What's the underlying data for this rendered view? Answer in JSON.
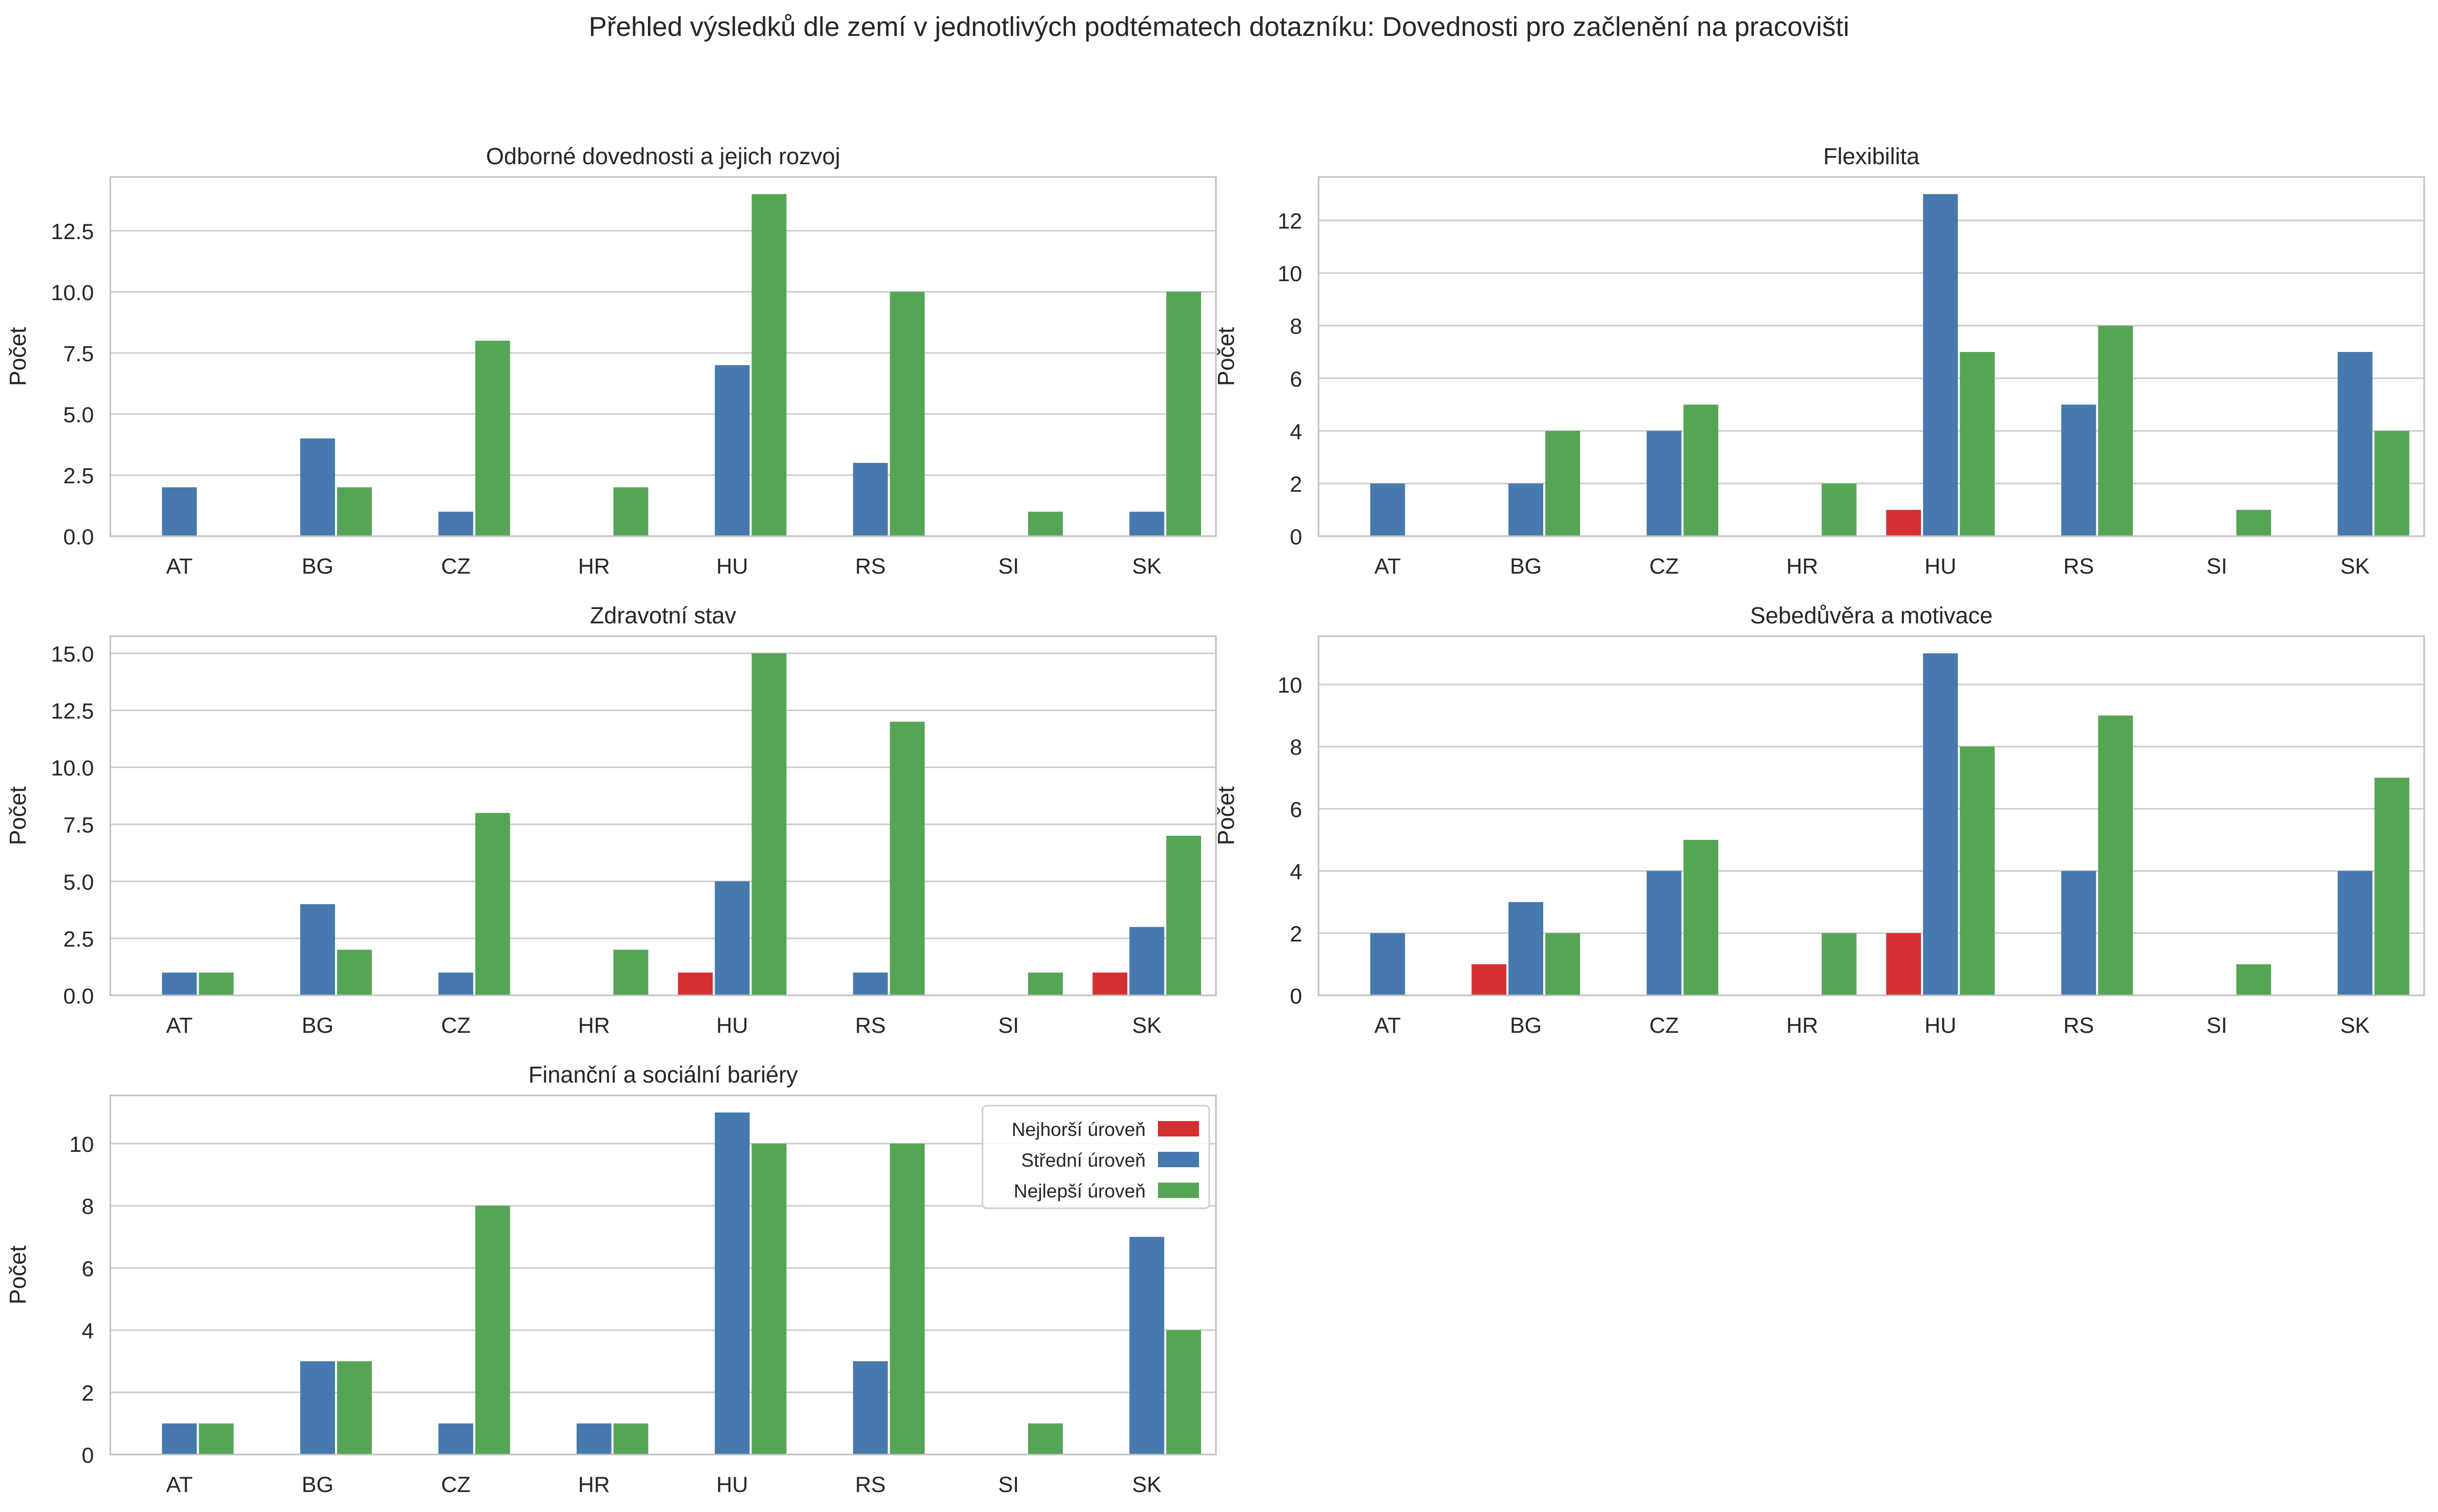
{
  "figure": {
    "title": "Přehled výsledků dle zemí v jednotlivých podtématech dotazníku: Dovednosti pro začlenění na pracovišti"
  },
  "legend": {
    "placement": "top-right",
    "entries": [
      "Nejhorší úroveň",
      "Střední úroveň",
      "Nejlepší úroveň"
    ]
  },
  "colors": {
    "Nejhorší úroveň": "#d62f32",
    "Střední úroveň": "#4679ad",
    "Nejlepší úroveň": "#56a556",
    "grid": "#cccccc",
    "frame": "#bfbfbf"
  },
  "chart_data": [
    {
      "type": "bar",
      "title": "Odborné dovednosti a jejich rozvoj",
      "xlabel": "",
      "ylabel": "Počet",
      "grid": true,
      "categories": [
        "AT",
        "BG",
        "CZ",
        "HR",
        "HU",
        "RS",
        "SI",
        "SK"
      ],
      "ylim": [
        0,
        14.7
      ],
      "yticks": [
        0,
        2.5,
        5,
        7.5,
        10,
        12.5
      ],
      "yticklabels": [
        "0.0",
        "2.5",
        "5.0",
        "7.5",
        "10.0",
        "12.5"
      ],
      "series": [
        {
          "name": "Nejhorší úroveň",
          "values": [
            0,
            0,
            0,
            0,
            0,
            0,
            0,
            0
          ]
        },
        {
          "name": "Střední úroveň",
          "values": [
            2,
            4,
            1,
            0,
            7,
            3,
            0,
            1
          ]
        },
        {
          "name": "Nejlepší úroveň",
          "values": [
            0,
            2,
            8,
            2,
            14,
            10,
            1,
            10
          ]
        }
      ]
    },
    {
      "type": "bar",
      "title": "Flexibilita",
      "xlabel": "",
      "ylabel": "Počet",
      "grid": true,
      "categories": [
        "AT",
        "BG",
        "CZ",
        "HR",
        "HU",
        "RS",
        "SI",
        "SK"
      ],
      "ylim": [
        0,
        13.65
      ],
      "yticks": [
        0,
        2,
        4,
        6,
        8,
        10,
        12
      ],
      "yticklabels": [
        "0",
        "2",
        "4",
        "6",
        "8",
        "10",
        "12"
      ],
      "series": [
        {
          "name": "Nejhorší úroveň",
          "values": [
            0,
            0,
            0,
            0,
            1,
            0,
            0,
            0
          ]
        },
        {
          "name": "Střední úroveň",
          "values": [
            2,
            2,
            4,
            0,
            13,
            5,
            0,
            7
          ]
        },
        {
          "name": "Nejlepší úroveň",
          "values": [
            0,
            4,
            5,
            2,
            7,
            8,
            1,
            4
          ]
        }
      ]
    },
    {
      "type": "bar",
      "title": "Zdravotní stav",
      "xlabel": "",
      "ylabel": "Počet",
      "grid": true,
      "categories": [
        "AT",
        "BG",
        "CZ",
        "HR",
        "HU",
        "RS",
        "SI",
        "SK"
      ],
      "ylim": [
        0,
        15.75
      ],
      "yticks": [
        0,
        2.5,
        5,
        7.5,
        10,
        12.5,
        15
      ],
      "yticklabels": [
        "0.0",
        "2.5",
        "5.0",
        "7.5",
        "10.0",
        "12.5",
        "15.0"
      ],
      "series": [
        {
          "name": "Nejhorší úroveň",
          "values": [
            0,
            0,
            0,
            0,
            1,
            0,
            0,
            1
          ]
        },
        {
          "name": "Střední úroveň",
          "values": [
            1,
            4,
            1,
            0,
            5,
            1,
            0,
            3
          ]
        },
        {
          "name": "Nejlepší úroveň",
          "values": [
            1,
            2,
            8,
            2,
            15,
            12,
            1,
            7
          ]
        }
      ]
    },
    {
      "type": "bar",
      "title": "Sebedůvěra a motivace",
      "xlabel": "",
      "ylabel": "Počet",
      "grid": true,
      "categories": [
        "AT",
        "BG",
        "CZ",
        "HR",
        "HU",
        "RS",
        "SI",
        "SK"
      ],
      "ylim": [
        0,
        11.55
      ],
      "yticks": [
        0,
        2,
        4,
        6,
        8,
        10
      ],
      "yticklabels": [
        "0",
        "2",
        "4",
        "6",
        "8",
        "10"
      ],
      "series": [
        {
          "name": "Nejhorší úroveň",
          "values": [
            0,
            1,
            0,
            0,
            2,
            0,
            0,
            0
          ]
        },
        {
          "name": "Střední úroveň",
          "values": [
            2,
            3,
            4,
            0,
            11,
            4,
            0,
            4
          ]
        },
        {
          "name": "Nejlepší úroveň",
          "values": [
            0,
            2,
            5,
            2,
            8,
            9,
            1,
            7
          ]
        }
      ]
    },
    {
      "type": "bar",
      "title": "Finanční a sociální bariéry",
      "xlabel": "",
      "ylabel": "Počet",
      "grid": true,
      "legend": true,
      "categories": [
        "AT",
        "BG",
        "CZ",
        "HR",
        "HU",
        "RS",
        "SI",
        "SK"
      ],
      "ylim": [
        0,
        11.55
      ],
      "yticks": [
        0,
        2,
        4,
        6,
        8,
        10
      ],
      "yticklabels": [
        "0",
        "2",
        "4",
        "6",
        "8",
        "10"
      ],
      "series": [
        {
          "name": "Nejhorší úroveň",
          "values": [
            0,
            0,
            0,
            0,
            0,
            0,
            0,
            0
          ]
        },
        {
          "name": "Střední úroveň",
          "values": [
            1,
            3,
            1,
            1,
            11,
            3,
            0,
            7
          ]
        },
        {
          "name": "Nejlepší úroveň",
          "values": [
            1,
            3,
            8,
            1,
            10,
            10,
            1,
            4
          ]
        }
      ]
    }
  ]
}
